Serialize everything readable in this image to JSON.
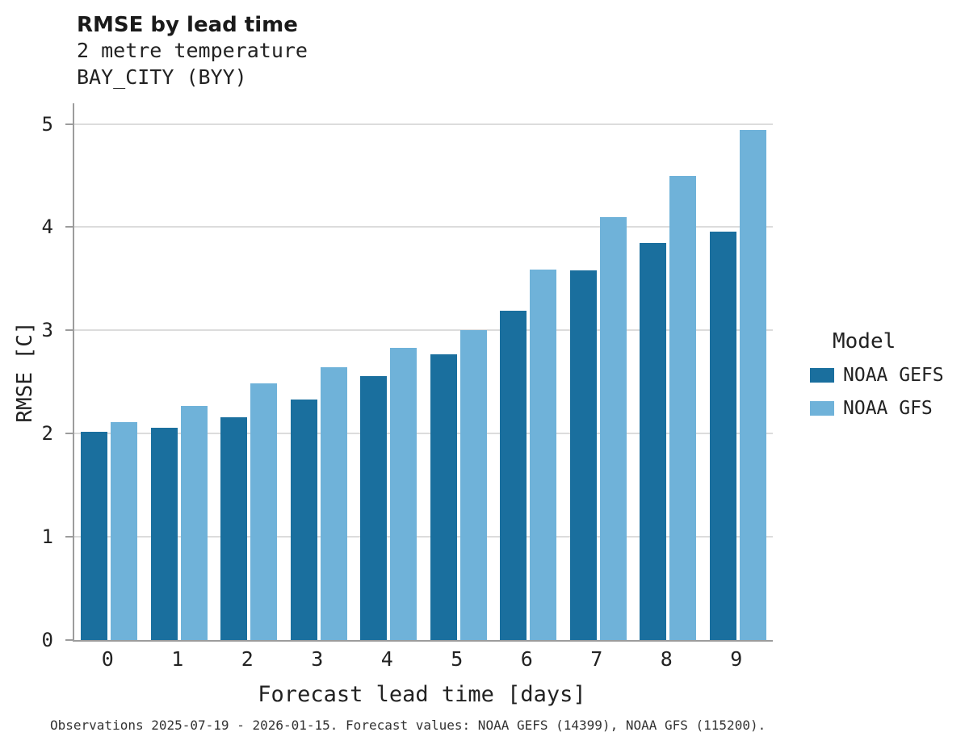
{
  "chart_data": {
    "type": "bar",
    "title": "RMSE by lead time",
    "subtitle": [
      "2 metre temperature",
      "BAY_CITY (BYY)"
    ],
    "xlabel": "Forecast lead time [days]",
    "ylabel": "RMSE [C]",
    "categories": [
      "0",
      "1",
      "2",
      "3",
      "4",
      "5",
      "6",
      "7",
      "8",
      "9"
    ],
    "series": [
      {
        "name": "NOAA GEFS",
        "color": "#1a6f9e",
        "values": [
          2.02,
          2.06,
          2.16,
          2.33,
          2.56,
          2.77,
          3.19,
          3.58,
          3.85,
          3.96
        ]
      },
      {
        "name": "NOAA GFS",
        "color": "#6fb2d9",
        "values": [
          2.11,
          2.27,
          2.49,
          2.64,
          2.83,
          3.0,
          3.59,
          4.1,
          4.5,
          4.94
        ]
      }
    ],
    "ylim": [
      0,
      5.2
    ],
    "yticks": [
      0,
      1,
      2,
      3,
      4,
      5
    ],
    "grid": true,
    "legend_title": "Model",
    "legend_position": "right",
    "caption": "Observations 2025-07-19 - 2026-01-15. Forecast values: NOAA GEFS (14399), NOAA GFS (115200)."
  },
  "colors": {
    "axis": "#9c9c9c",
    "gridline": "#dcdcdc",
    "text": "#222222"
  }
}
